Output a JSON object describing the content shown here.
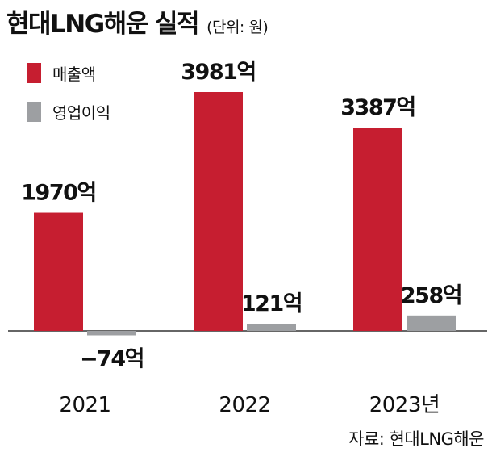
{
  "title": "현대LNG해운 실적",
  "unit": "(단위: 원)",
  "source": "자료: 현대LNG해운",
  "chart_data": {
    "type": "bar",
    "title": "현대LNG해운 실적",
    "unit_note": "(단위: 원)",
    "categories": [
      "2021",
      "2022",
      "2023년"
    ],
    "series": [
      {
        "name": "매출액",
        "color": "#c61e30",
        "values": [
          1970,
          3981,
          3387
        ],
        "labels": [
          "1970억",
          "3981억",
          "3387억"
        ]
      },
      {
        "name": "영업이익",
        "color": "#9d9fa2",
        "values": [
          -74,
          121,
          258
        ],
        "labels": [
          "−74억",
          "121억",
          "258억"
        ]
      }
    ],
    "ylim": [
      -400,
      4400
    ],
    "grid": false,
    "legend": "top-left"
  }
}
